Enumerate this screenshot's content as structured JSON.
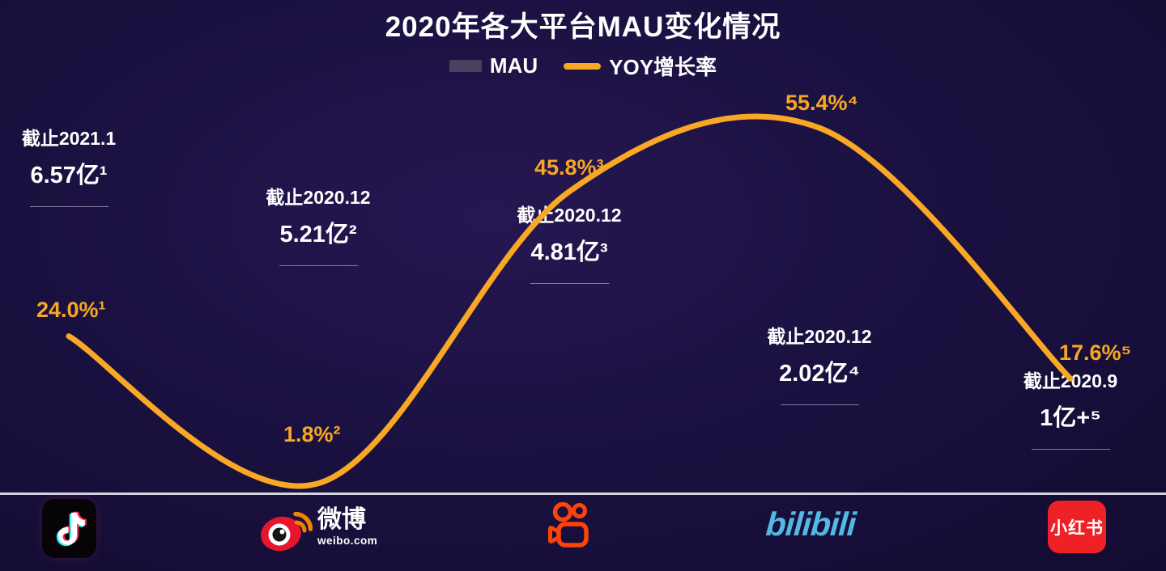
{
  "title": "2020年各大平台MAU变化情况",
  "legend": {
    "mau": "MAU",
    "yoy": "YOY增长率"
  },
  "colors": {
    "background": "#1b1141",
    "bar_top": "#6f6887",
    "bar_bottom": "#3c3559",
    "line": "#f9a825",
    "yoy_text": "#f7a723",
    "text": "#ffffff",
    "baseline": "#d5d3e2",
    "bilibili_blue": "#55b7e6",
    "xiaohongshu_red": "#ee2126",
    "kuaishou_orange": "#fc4308",
    "weibo_red": "#e6162d",
    "weibo_signal_orange": "#f08300",
    "douyin_cyan": "#25f4ee",
    "douyin_red": "#fe2c55"
  },
  "chart_data": {
    "type": "combo-bar-line",
    "title": "2020年各大平台MAU变化情况",
    "categories": [
      "抖音",
      "微博",
      "快手",
      "bilibili",
      "小红书"
    ],
    "legend_position": "top",
    "grid": false,
    "baseline_axis": true,
    "series": [
      {
        "name": "MAU",
        "type": "bar",
        "unit": "亿",
        "values": [
          6.57,
          5.21,
          4.81,
          2.02,
          1.0
        ]
      },
      {
        "name": "YOY增长率",
        "type": "line",
        "unit": "%",
        "values": [
          24.0,
          1.8,
          45.8,
          55.4,
          17.6
        ]
      }
    ],
    "points": [
      {
        "date": "截止2021.1",
        "mau_label": "6.57亿¹",
        "yoy_label": "24.0%¹",
        "mau": 6.57,
        "yoy": 24.0
      },
      {
        "date": "截止2020.12",
        "mau_label": "5.21亿²",
        "yoy_label": "1.8%²",
        "mau": 5.21,
        "yoy": 1.8
      },
      {
        "date": "截止2020.12",
        "mau_label": "4.81亿³",
        "yoy_label": "45.8%³",
        "mau": 4.81,
        "yoy": 45.8
      },
      {
        "date": "截止2020.12",
        "mau_label": "2.02亿⁴",
        "yoy_label": "55.4%⁴",
        "mau": 2.02,
        "yoy": 55.4
      },
      {
        "date": "截止2020.9",
        "mau_label": "1亿+⁵",
        "yoy_label": "17.6%⁵",
        "mau": 1.0,
        "yoy": 17.6
      }
    ]
  },
  "platforms": {
    "weibo": {
      "name": "微博",
      "domain": "weibo.com"
    },
    "bilibili": {
      "wordmark": "bilibili"
    },
    "xiaohongshu": {
      "label": "小红书"
    }
  }
}
